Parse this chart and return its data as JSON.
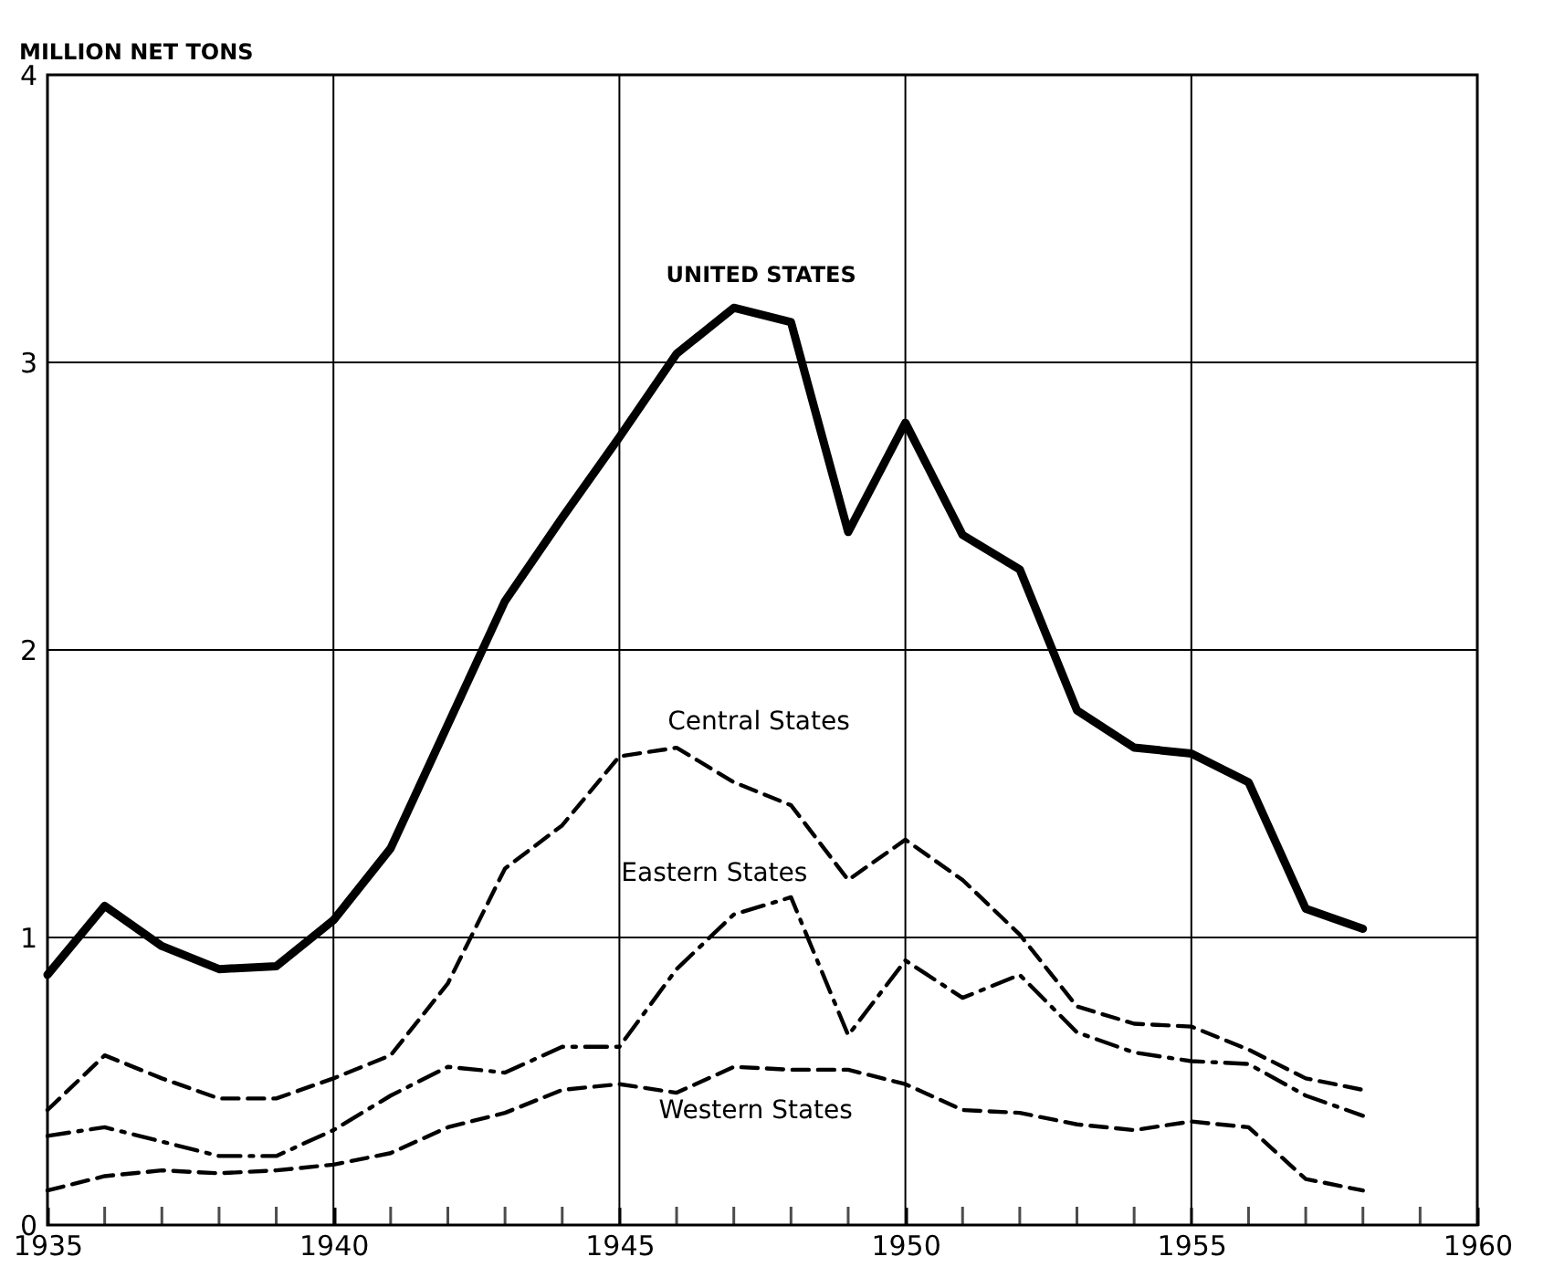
{
  "chart_data": {
    "type": "line",
    "ylabel": "MILLION NET TONS",
    "x": [
      1935,
      1936,
      1937,
      1938,
      1939,
      1940,
      1941,
      1942,
      1943,
      1944,
      1945,
      1946,
      1947,
      1948,
      1949,
      1950,
      1951,
      1952,
      1953,
      1954,
      1955,
      1956,
      1957,
      1958
    ],
    "series": [
      {
        "name": "UNITED STATES",
        "color": "#000000",
        "line_style": "solid",
        "values": [
          0.87,
          1.11,
          0.97,
          0.89,
          0.9,
          1.06,
          1.31,
          1.74,
          2.17,
          2.46,
          2.74,
          3.03,
          3.19,
          3.14,
          2.41,
          2.79,
          2.4,
          2.28,
          1.79,
          1.66,
          1.64,
          1.54,
          1.1,
          1.03
        ]
      },
      {
        "name": "Central States",
        "color": "#000000",
        "line_style": "dashed",
        "values": [
          0.4,
          0.59,
          0.51,
          0.44,
          0.44,
          0.51,
          0.59,
          0.84,
          1.24,
          1.39,
          1.63,
          1.66,
          1.54,
          1.46,
          1.2,
          1.34,
          1.2,
          1.01,
          0.76,
          0.7,
          0.69,
          0.61,
          0.51,
          0.47
        ]
      },
      {
        "name": "Eastern States",
        "color": "#000000",
        "line_style": "dashdot",
        "values": [
          0.31,
          0.34,
          0.29,
          0.24,
          0.24,
          0.33,
          0.45,
          0.55,
          0.53,
          0.62,
          0.62,
          0.89,
          1.08,
          1.14,
          0.66,
          0.92,
          0.79,
          0.87,
          0.67,
          0.6,
          0.57,
          0.56,
          0.45,
          0.38
        ]
      },
      {
        "name": "Western States",
        "color": "#000000",
        "line_style": "dashed",
        "values": [
          0.12,
          0.17,
          0.19,
          0.18,
          0.19,
          0.21,
          0.25,
          0.34,
          0.39,
          0.47,
          0.49,
          0.46,
          0.55,
          0.54,
          0.54,
          0.49,
          0.4,
          0.39,
          0.35,
          0.33,
          0.36,
          0.34,
          0.16,
          0.12
        ]
      }
    ],
    "xlim": [
      1935,
      1960
    ],
    "xticks": [
      1935,
      {
        "value": 1936,
        "label": null
      },
      {
        "value": 1937,
        "label": null
      },
      {
        "value": 1938,
        "label": null
      },
      {
        "value": 1939,
        "label": null
      },
      1940,
      {
        "value": 1941,
        "label": null
      },
      {
        "value": 1942,
        "label": null
      },
      {
        "value": 1943,
        "label": null
      },
      {
        "value": 1944,
        "label": null
      },
      1945,
      {
        "value": 1946,
        "label": null
      },
      {
        "value": 1947,
        "label": null
      },
      {
        "value": 1948,
        "label": null
      },
      {
        "value": 1949,
        "label": null
      },
      1950,
      {
        "value": 1951,
        "label": null
      },
      {
        "value": 1952,
        "label": null
      },
      {
        "value": 1953,
        "label": null
      },
      {
        "value": 1954,
        "label": null
      },
      1955,
      {
        "value": 1956,
        "label": null
      },
      {
        "value": 1957,
        "label": null
      },
      {
        "value": 1958,
        "label": null
      },
      {
        "value": 1959,
        "label": null
      },
      1960
    ],
    "ylim": [
      0,
      4
    ],
    "yticks": [
      0,
      1,
      2,
      3,
      4
    ],
    "grid": true
  }
}
